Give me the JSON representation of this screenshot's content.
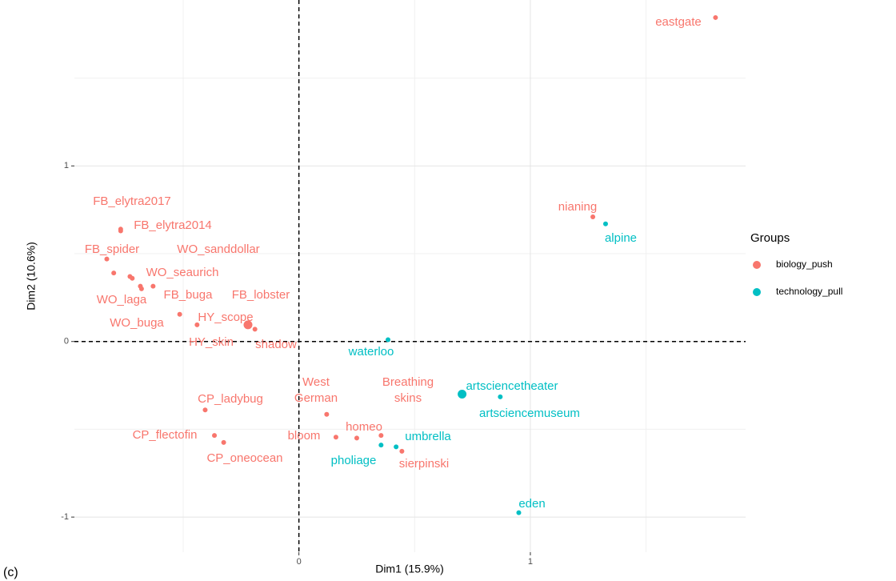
{
  "chart_data": {
    "type": "scatter",
    "xlabel": "Dim1 (15.9%)",
    "ylabel": "Dim2 (10.6%)",
    "xlim": [
      -0.97,
      1.93
    ],
    "ylim": [
      -1.2,
      1.945
    ],
    "xticks": [
      0,
      1
    ],
    "yticks": [
      -1,
      0,
      1
    ],
    "xminor": [
      -0.5,
      0.5,
      1.5
    ],
    "yminor": [
      -0.5,
      0.5,
      1.5
    ],
    "grid": true,
    "legend": "right",
    "legend_title": "Groups",
    "panel_label": "(c)",
    "series": [
      {
        "name": "biology_push",
        "color": "#F8766D",
        "labels": [
          "eastgate",
          "nianing",
          "FB_elytra2017",
          "FB_elytra2014",
          "WO_sanddollar",
          "FB_spider",
          "WO_seaurich",
          "FB_lobster",
          "WO_laga",
          "FB_buga",
          "WO_buga",
          "HY_scope",
          "HY_skin",
          "shadow",
          "CP_ladybug",
          "CP_flectofin",
          "CP_oneocean",
          "West German",
          "bloom",
          "homeo",
          "Breathing skins",
          "sierpinski"
        ],
        "x": [
          1.8,
          1.27,
          -0.77,
          -0.77,
          -0.83,
          -0.8,
          -0.73,
          -0.72,
          -0.685,
          -0.63,
          -0.68,
          -0.515,
          -0.44,
          -0.19,
          -0.405,
          -0.365,
          -0.325,
          0.12,
          0.16,
          0.25,
          0.355,
          0.445
        ],
        "values": [
          1.845,
          0.71,
          0.63,
          0.64,
          0.47,
          0.39,
          0.37,
          0.36,
          0.315,
          0.315,
          0.3,
          0.155,
          0.095,
          0.07,
          -0.39,
          -0.535,
          -0.575,
          -0.415,
          -0.545,
          -0.55,
          -0.535,
          -0.625
        ],
        "centroid": {
          "x": -0.22,
          "y": 0.095
        }
      },
      {
        "name": "technology_pull",
        "color": "#00BFC4",
        "labels": [
          "alpine",
          "waterloo",
          "artsciencetheater",
          "artsciencemuseum",
          "pholiage",
          "umbrella",
          "eden"
        ],
        "x": [
          1.325,
          0.385,
          0.87,
          0.705,
          0.355,
          0.42,
          0.95
        ],
        "values": [
          0.67,
          0.01,
          -0.315,
          -0.3,
          -0.59,
          -0.6,
          -0.975
        ],
        "centroid": {
          "x": 0.705,
          "y": -0.3
        }
      }
    ]
  }
}
